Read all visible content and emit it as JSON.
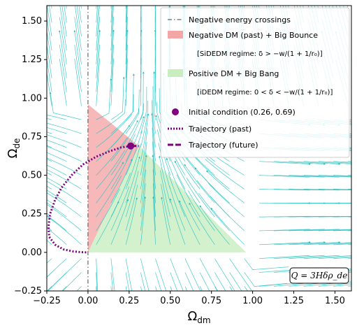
{
  "chart_data": {
    "type": "phase_portrait",
    "xlabel": "Ω",
    "xlabel_sub": "dm",
    "ylabel": "Ω",
    "ylabel_sub": "de",
    "xlim": [
      -0.25,
      1.6
    ],
    "ylim": [
      -0.25,
      1.6
    ],
    "xticks": [
      -0.25,
      0.0,
      0.25,
      0.5,
      0.75,
      1.0,
      1.25,
      1.5
    ],
    "xtick_labels": [
      "−0.25",
      "0.00",
      "0.25",
      "0.50",
      "0.75",
      "1.00",
      "1.25",
      "1.50"
    ],
    "yticks": [
      -0.25,
      0.0,
      0.25,
      0.5,
      0.75,
      1.0,
      1.25,
      1.5
    ],
    "ytick_labels": [
      "−0.25",
      "0.00",
      "0.25",
      "0.50",
      "0.75",
      "1.00",
      "1.25",
      "1.50"
    ],
    "grid": false,
    "streamline_color": "#2ec4c4",
    "negative_energy_line_x": 0.0,
    "regions": [
      {
        "name": "Negative DM (past) + Big Bounce",
        "color": "#f4a6a6",
        "vertices": [
          [
            0.0,
            0.0
          ],
          [
            0.0,
            0.96
          ],
          [
            0.31,
            0.69
          ]
        ]
      },
      {
        "name": "Positive DM + Big Bang",
        "color": "#c8eec0",
        "vertices": [
          [
            0.0,
            0.0
          ],
          [
            0.31,
            0.69
          ],
          [
            0.96,
            0.0
          ]
        ]
      }
    ],
    "initial_condition": {
      "x": 0.26,
      "y": 0.69,
      "color": "#800080"
    },
    "trajectory_past": {
      "color": "#800080",
      "x": [
        0.26,
        0.2,
        0.13,
        0.05,
        -0.03,
        -0.1,
        -0.16,
        -0.2,
        -0.23,
        -0.24,
        -0.235,
        -0.2,
        -0.15,
        -0.09,
        -0.04,
        0.0
      ],
      "y": [
        0.69,
        0.68,
        0.655,
        0.62,
        0.57,
        0.5,
        0.42,
        0.34,
        0.25,
        0.17,
        0.1,
        0.05,
        0.02,
        0.006,
        0.001,
        0.0
      ]
    },
    "trajectory_future": {
      "color": "#800080",
      "x": [
        0.26,
        0.29,
        0.31
      ],
      "y": [
        0.69,
        0.69,
        0.69
      ]
    },
    "legend": {
      "placement": "top-right",
      "entries": [
        {
          "label": "Negative energy crossings",
          "marker": "dashdot-line",
          "color": "#666666"
        },
        {
          "label": "Negative DM (past) + Big Bounce",
          "marker": "patch",
          "color": "#f4a6a6"
        },
        {
          "label": "[SiDEDM regime: δ > −w/(1 + 1/r₀)]",
          "marker": "none"
        },
        {
          "label": "Positive DM + Big Bang",
          "marker": "patch",
          "color": "#c8eec0"
        },
        {
          "label": "[iDEDM regime: 0 < δ < −w/(1 + 1/r₀)]",
          "marker": "none"
        },
        {
          "label": "Initial condition (0.26,  0.69)",
          "marker": "circle",
          "color": "#800080"
        },
        {
          "label": "Trajectory (past)",
          "marker": "dotted-line",
          "color": "#800080"
        },
        {
          "label": "Trajectory (future)",
          "marker": "dashed-line",
          "color": "#800080"
        }
      ]
    },
    "annotation": "Q = 3Hδρ_de"
  }
}
